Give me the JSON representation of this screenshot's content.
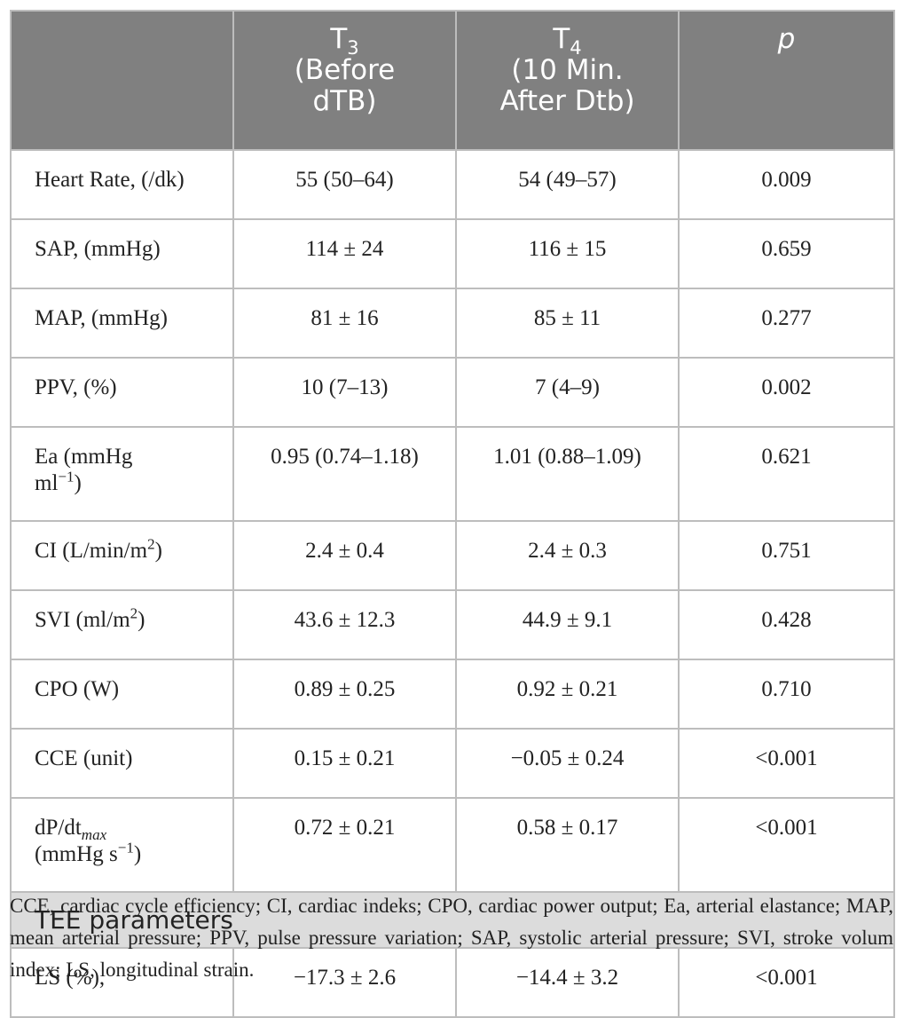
{
  "header": {
    "col1": "",
    "col2_main": "T",
    "col2_sub": "3",
    "col2_rest": "(Before dTB)",
    "col3_main": "T",
    "col3_sub": "4",
    "col3_rest": "(10 Min. After Dtb)",
    "col4": "p"
  },
  "rows": [
    {
      "label": "Heart Rate, (/dk)",
      "t3": "55 (50–64)",
      "t4": "54 (49–57)",
      "p": "0.009"
    },
    {
      "label": "SAP, (mmHg)",
      "t3": "114 ± 24",
      "t4": "116 ± 15",
      "p": "0.659"
    },
    {
      "label": "MAP, (mmHg)",
      "t3": "81 ± 16",
      "t4": "85 ± 11",
      "p": "0.277"
    },
    {
      "label": "PPV, (%)",
      "t3": "10 (7–13)",
      "t4": "7 (4–9)",
      "p": "0.002"
    },
    {
      "label_a": "Ea (mmHg",
      "label_b": "ml",
      "label_sup": "−1",
      "label_c": ")",
      "t3": "0.95 (0.74–1.18)",
      "t4": "1.01 (0.88–1.09)",
      "p": "0.621"
    },
    {
      "label_a": "CI (L/min/m",
      "label_sup": "2",
      "label_c": ")",
      "t3": "2.4 ± 0.4",
      "t4": "2.4 ± 0.3",
      "p": "0.751"
    },
    {
      "label_a": "SVI (ml/m",
      "label_sup": "2",
      "label_c": ")",
      "t3": "43.6 ± 12.3",
      "t4": "44.9 ± 9.1",
      "p": "0.428"
    },
    {
      "label": "CPO (W)",
      "t3": "0.89 ± 0.25",
      "t4": "0.92 ± 0.21",
      "p": "0.710"
    },
    {
      "label": "CCE (unit)",
      "t3": "0.15 ± 0.21",
      "t4": "−0.05 ± 0.24",
      "p": "<0.001"
    },
    {
      "label_a": "dP/dt",
      "label_sub": "max",
      "label_b": "(mmHg s",
      "label_sup": "−1",
      "label_c": ")",
      "t3": "0.72 ± 0.21",
      "t4": "0.58 ± 0.17",
      "p": "<0.001"
    }
  ],
  "section": {
    "label": "TEE parameters"
  },
  "section_rows": [
    {
      "label": "LS (%),",
      "t3": "−17.3 ± 2.6",
      "t4": "−14.4 ± 3.2",
      "p": "<0.001"
    }
  ],
  "footnote": "CCE, cardiac cycle efficiency; CI, cardiac indeks; CPO, cardiac power output; Ea, arterial elastance; MAP, mean arterial pressure; PPV, pulse pressure variation; SAP, systolic arterial pressure; SVI, stroke volum index; LS, longitudinal strain."
}
